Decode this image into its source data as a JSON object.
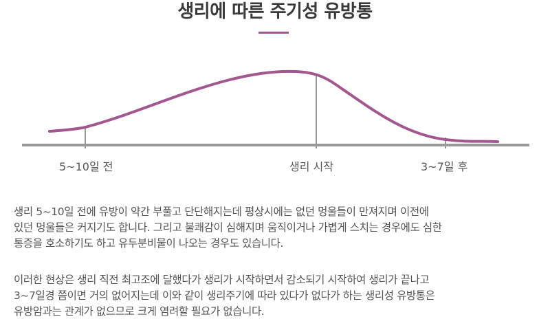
{
  "title": "생리에 따른 주기성 유방통",
  "accent_color": "#a3578f",
  "axis_color": "#999999",
  "markers": [
    {
      "label": "5~10일 전"
    },
    {
      "label": "생리 시작"
    },
    {
      "label": "3~7일 후"
    }
  ],
  "paragraph1": [
    "생리 5~10일 전에 유방이 약간 부풀고 단단해지는데 평상시에는 없던 멍울들이 만져지며 이전에",
    "있던 멍울들은 커지기도 합니다. 그리고 불쾌감이 심해지며 움직이거나 가볍게 스치는 경우에도 심한",
    "통증을 호소하기도 하고 유두분비물이 나오는 경우도 있습니다."
  ],
  "paragraph2": [
    "이러한 현상은 생리 직전 최고조에 달했다가 생리가 시작하면서 감소되기 시작하여 생리가 끝나고",
    "3~7일경 쯤이면 거의 없어지는데 이와 같이 생리주기에 따라 있다가 없다가 하는 생리성 유방통은",
    "유방암과는 관계가 없으므로 크게 염려할 필요가 없습니다."
  ]
}
